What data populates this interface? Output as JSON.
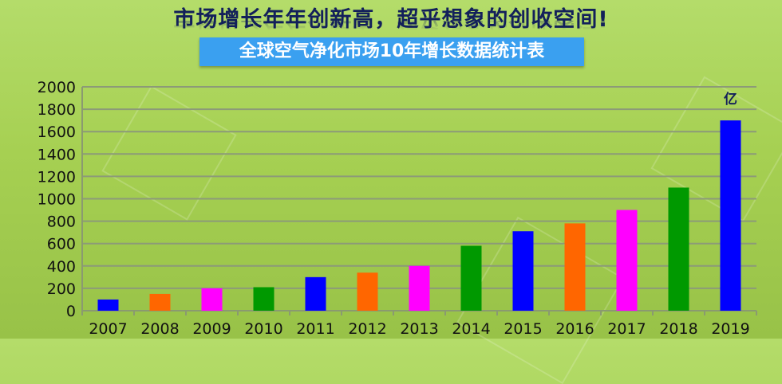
{
  "header": {
    "title": "市场增长年年创新高，超乎想象的创收空间!",
    "subtitle": "全球空气净化市场10年增长数据统计表"
  },
  "chart_data": {
    "type": "bar",
    "title": "全球空气净化市场10年增长数据统计表",
    "categories": [
      "2007",
      "2008",
      "2009",
      "2010",
      "2011",
      "2012",
      "2013",
      "2014",
      "2015",
      "2016",
      "2017",
      "2018",
      "2019"
    ],
    "values": [
      100,
      150,
      200,
      210,
      300,
      340,
      400,
      580,
      710,
      780,
      900,
      1100,
      1700
    ],
    "colors": [
      "#0000ff",
      "#ff6600",
      "#ff00ff",
      "#009900",
      "#0000ff",
      "#ff6600",
      "#ff00ff",
      "#009900",
      "#0000ff",
      "#ff6600",
      "#ff00ff",
      "#009900",
      "#0000ff"
    ],
    "ylim": [
      0,
      2000
    ],
    "yticks": [
      0,
      200,
      400,
      600,
      800,
      1000,
      1200,
      1400,
      1600,
      1800,
      2000
    ],
    "unit_label": "亿",
    "grid": true,
    "xlabel": "",
    "ylabel": ""
  }
}
